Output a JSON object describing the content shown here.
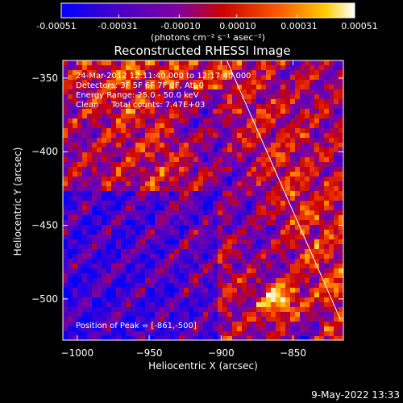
{
  "chart_data": {
    "type": "heatmap",
    "title": "Reconstructed RHESSI Image",
    "xlabel": "Heliocentric X (arcsec)",
    "ylabel": "Heliocentric Y (arcsec)",
    "xlim": [
      -1010,
      -815
    ],
    "ylim": [
      -528,
      -338
    ],
    "x_ticks": [
      -1000,
      -950,
      -900,
      -850
    ],
    "y_ticks": [
      -350,
      -400,
      -450,
      -500
    ],
    "x_tick_labels": [
      "−1000",
      "−950",
      "−900",
      "−850"
    ],
    "y_tick_labels": [
      "−350",
      "−400",
      "−450",
      "−500"
    ],
    "colorbar": {
      "range": [
        -0.00051,
        0.00051
      ],
      "tick_labels": [
        "-0.00051",
        "-0.00031",
        "-0.00010",
        "0.00010",
        "0.00031",
        "0.00051"
      ],
      "tick_values": [
        -0.00051,
        -0.00031,
        -0.0001,
        0.0001,
        0.00031,
        0.00051
      ],
      "unit_label": "(photons cm⁻² s⁻¹ asec⁻²)",
      "colors": [
        "#0000ff",
        "#4a00c8",
        "#8000a0",
        "#cc0000",
        "#ff6000",
        "#ffcc00",
        "#ffffff"
      ]
    },
    "annotations": [
      "24-Mar-2012 12:11:40.000 to 12:17:40.000",
      "Detectors: 3F 5F 6F 7F 8F, Att 0",
      "Energy Range: 25.0 - 50.0 keV",
      "Clean     Total counts: 7.47E+03"
    ],
    "peak_label": "Position of Peak = [-861,-500]",
    "peak": [
      -861,
      -500
    ],
    "limb_line": [
      [
        -896,
        -338
      ],
      [
        -817,
        -514
      ]
    ]
  },
  "footer": {
    "date": "9-May-2022 13:33"
  }
}
